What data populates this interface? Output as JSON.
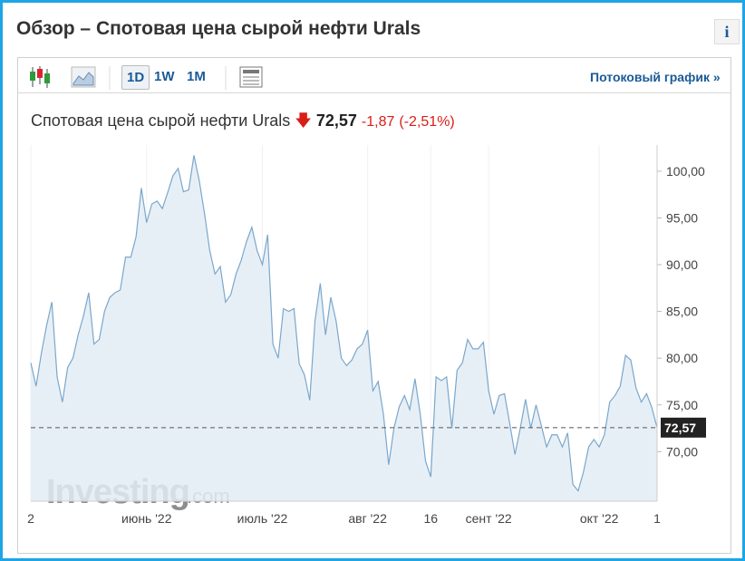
{
  "header": {
    "title": "Обзор – Спотовая цена сырой нефти Urals",
    "info": "i"
  },
  "toolbar": {
    "periods": [
      "1D",
      "1W",
      "1M"
    ],
    "stream_link": "Потоковый график »"
  },
  "quote": {
    "name": "Спотовая цена сырой нефти Urals",
    "price": "72,57",
    "change": "-1,87",
    "change_pct": "(-2,51%)"
  },
  "watermark": {
    "brand": "Investing",
    "suffix": ".com"
  },
  "chart_data": {
    "type": "area",
    "color": "#7aa7cc",
    "fill": "#e3ecf5",
    "values": [
      79.5,
      77,
      80.5,
      83.5,
      86,
      78,
      75.3,
      79,
      80,
      82.5,
      84.5,
      87,
      81.5,
      82,
      85,
      86.5,
      87,
      87.3,
      90.8,
      90.8,
      93,
      98.2,
      94.5,
      96.5,
      96.8,
      96,
      97.7,
      99.5,
      100.3,
      97.8,
      98,
      101.7,
      99,
      95.5,
      91.5,
      89,
      89.8,
      86,
      86.8,
      89,
      90.5,
      92.5,
      94,
      91.5,
      90,
      93.2,
      81.5,
      80,
      85.3,
      85,
      85.3,
      79.4,
      78.2,
      75.5,
      84,
      88,
      82.5,
      86.5,
      84,
      80,
      79.2,
      79.8,
      81,
      81.5,
      83,
      76.5,
      77.5,
      74,
      68.6,
      72.5,
      74.8,
      76,
      74.5,
      77.8,
      74,
      69,
      67.3,
      78,
      77.6,
      78,
      72.5,
      78.7,
      79.5,
      82,
      81,
      81,
      81.7,
      76.5,
      74,
      76,
      76.2,
      73,
      69.7,
      72.5,
      75.6,
      72.5,
      75,
      72.8,
      70.5,
      71.8,
      71.8,
      70.5,
      72,
      66.5,
      65.8,
      67.8,
      70.5,
      71.3,
      70.5,
      71.8,
      75.3,
      76,
      77,
      80.3,
      79.8,
      76.8,
      75.3,
      76.2,
      74.7,
      72.57
    ],
    "xlim": [
      0,
      119
    ],
    "xticks": [
      {
        "value": 0,
        "label": "2"
      },
      {
        "value": 22,
        "label": "июнь '22"
      },
      {
        "value": 44,
        "label": "июль '22"
      },
      {
        "value": 64,
        "label": "авг '22"
      },
      {
        "value": 76,
        "label": "16"
      },
      {
        "value": 87,
        "label": "сент '22"
      },
      {
        "value": 108,
        "label": "окт '22"
      },
      {
        "value": 119,
        "label": "1"
      }
    ],
    "ylim": [
      64.7,
      102.8
    ],
    "yticks": [
      {
        "value": 70,
        "label": "70,00"
      },
      {
        "value": 75,
        "label": "75,00"
      },
      {
        "value": 80,
        "label": "80,00"
      },
      {
        "value": 85,
        "label": "85,00"
      },
      {
        "value": 90,
        "label": "90,00"
      },
      {
        "value": 95,
        "label": "95,00"
      },
      {
        "value": 100,
        "label": "100,00"
      }
    ],
    "grid": true
  }
}
